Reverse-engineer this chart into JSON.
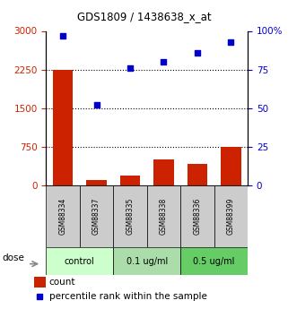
{
  "title": "GDS1809 / 1438638_x_at",
  "samples": [
    "GSM88334",
    "GSM88337",
    "GSM88335",
    "GSM88338",
    "GSM88336",
    "GSM88399"
  ],
  "counts": [
    2250,
    100,
    200,
    500,
    420,
    750
  ],
  "percentiles": [
    97,
    52,
    76,
    80,
    86,
    93
  ],
  "bar_color": "#cc2200",
  "dot_color": "#0000cc",
  "left_yticks": [
    0,
    750,
    1500,
    2250,
    3000
  ],
  "right_yticks": [
    0,
    25,
    50,
    75,
    100
  ],
  "right_yticklabels": [
    "0",
    "25",
    "50",
    "75",
    "100%"
  ],
  "ylim_left": [
    0,
    3000
  ],
  "ylim_right": [
    0,
    100
  ],
  "hlines": [
    750,
    1500,
    2250
  ],
  "group_defs": [
    [
      0,
      1,
      "control",
      "#ccffcc"
    ],
    [
      2,
      3,
      "0.1 ug/ml",
      "#aaddaa"
    ],
    [
      4,
      5,
      "0.5 ug/ml",
      "#66cc66"
    ]
  ],
  "dose_label": "dose",
  "legend_count_label": "count",
  "legend_pct_label": "percentile rank within the sample",
  "bg_color": "#ffffff",
  "tick_label_color_left": "#cc2200",
  "tick_label_color_right": "#0000cc",
  "title_color": "#000000",
  "sample_box_color": "#cccccc"
}
